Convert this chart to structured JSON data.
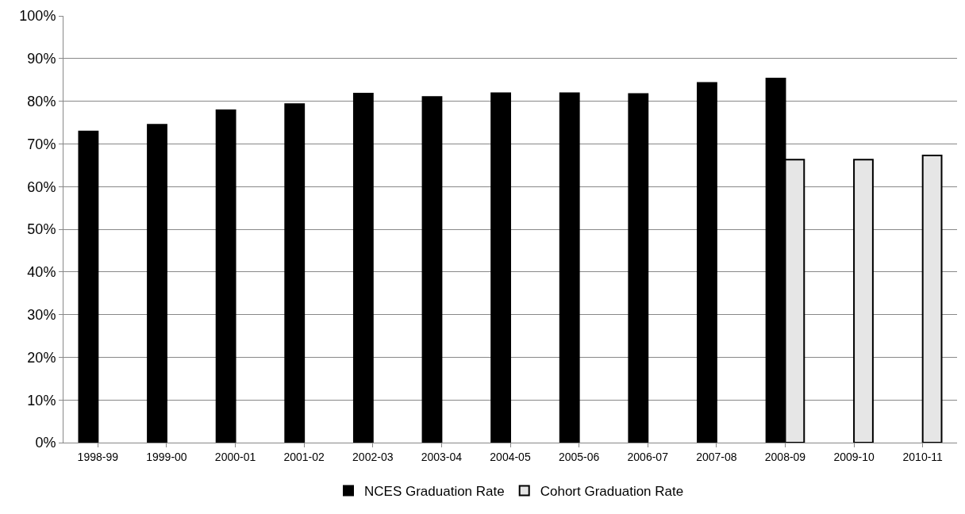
{
  "chart_data": {
    "type": "bar",
    "categories": [
      "1998-99",
      "1999-00",
      "2000-01",
      "2001-02",
      "2002-03",
      "2003-04",
      "2004-05",
      "2005-06",
      "2006-07",
      "2007-08",
      "2008-09",
      "2009-10",
      "2010-11"
    ],
    "series": [
      {
        "name": "NCES Graduation Rate",
        "color": "#000000",
        "values": [
          72.9,
          74.5,
          77.9,
          79.3,
          81.8,
          81.0,
          81.9,
          81.9,
          81.7,
          84.3,
          85.3,
          null,
          null
        ]
      },
      {
        "name": "Cohort Graduation Rate",
        "color": "#e6e6e6",
        "values": [
          null,
          null,
          null,
          null,
          null,
          null,
          null,
          null,
          null,
          null,
          66.3,
          66.3,
          67.3
        ]
      }
    ],
    "ylim": [
      0,
      100
    ],
    "yticks": [
      {
        "value": 0,
        "label": "0%"
      },
      {
        "value": 10,
        "label": "10%"
      },
      {
        "value": 20,
        "label": "20%"
      },
      {
        "value": 30,
        "label": "30%"
      },
      {
        "value": 40,
        "label": "40%"
      },
      {
        "value": 50,
        "label": "50%"
      },
      {
        "value": 60,
        "label": "60%"
      },
      {
        "value": 70,
        "label": "70%"
      },
      {
        "value": 80,
        "label": "80%"
      },
      {
        "value": 90,
        "label": "90%"
      },
      {
        "value": 100,
        "label": "100%"
      }
    ],
    "grid": "y",
    "legend": "bottom"
  }
}
